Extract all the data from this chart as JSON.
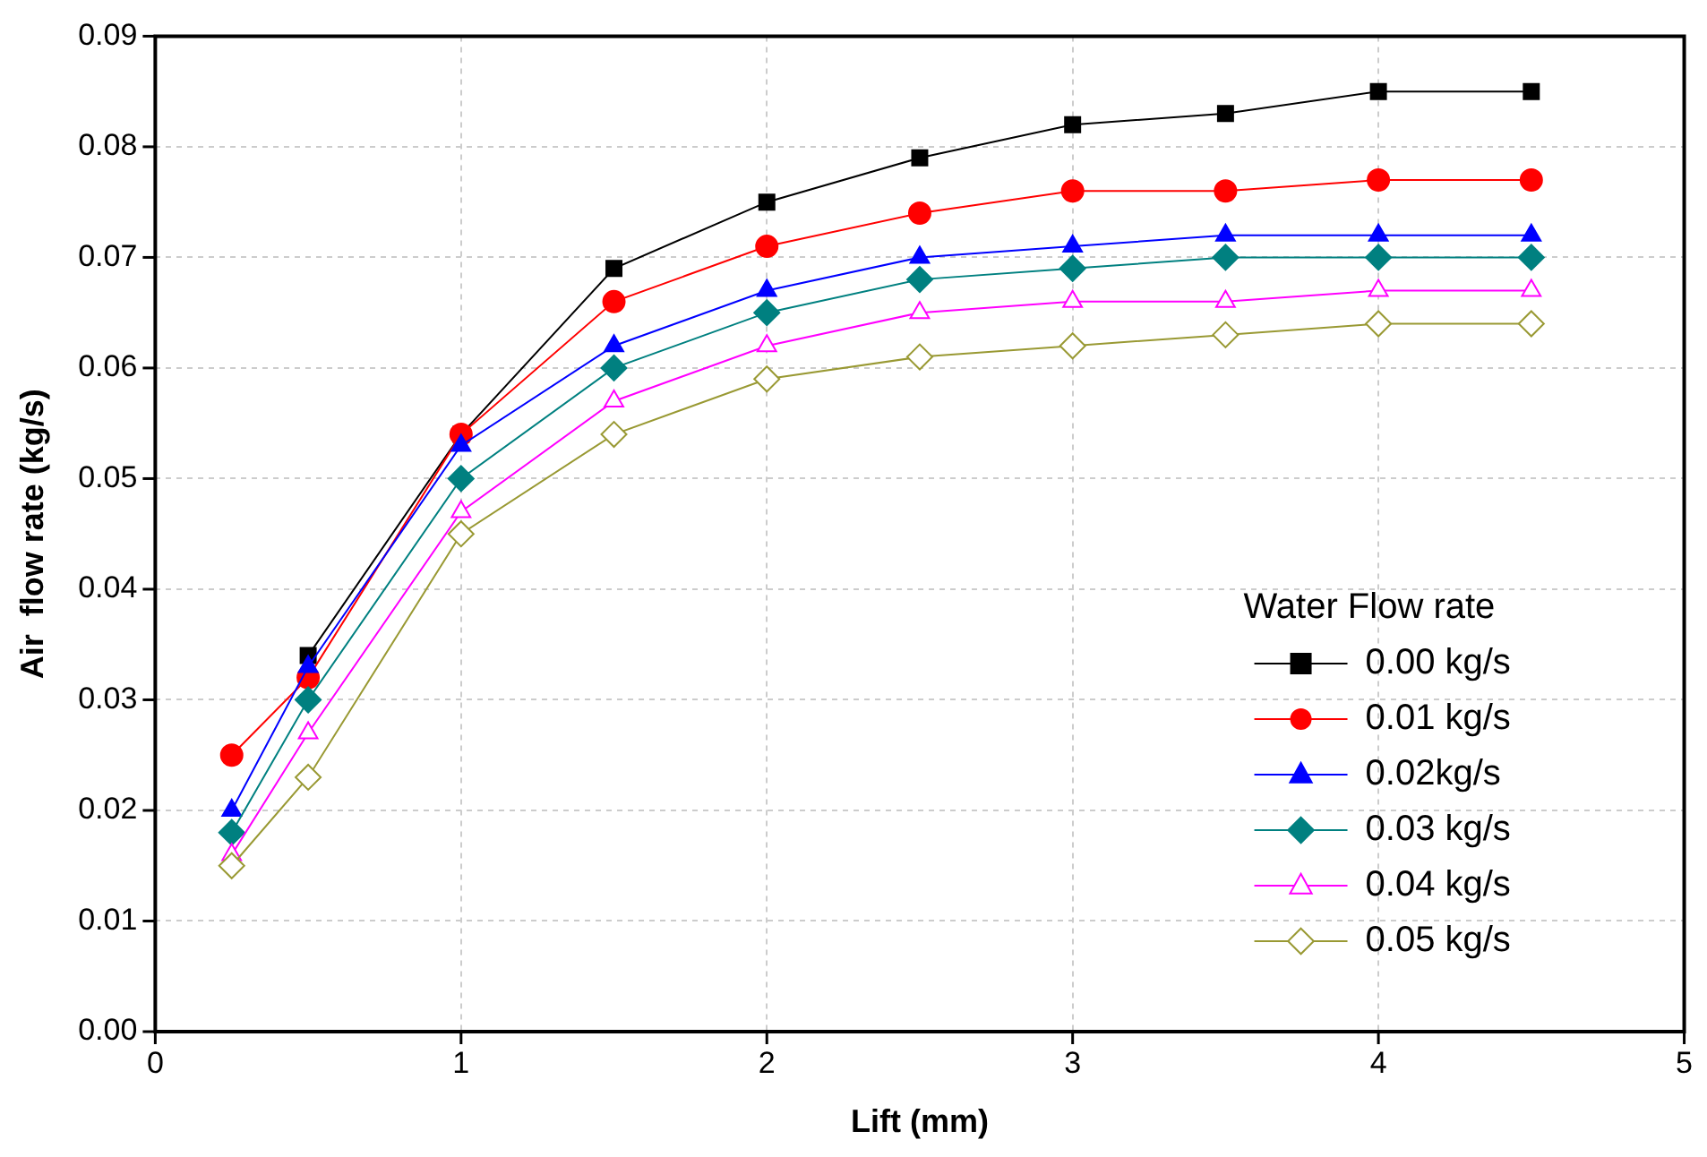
{
  "chart_data": {
    "type": "line",
    "xlabel": "Lift (mm)",
    "ylabel": "Air  flow rate (kg/s)",
    "legend_title": "Water Flow rate",
    "x": [
      0.25,
      0.5,
      1,
      1.5,
      2,
      2.5,
      3,
      3.5,
      4,
      4.5
    ],
    "series": [
      {
        "name": "0.00 kg/s",
        "color": "#000000",
        "marker": "square",
        "values": [
          null,
          0.034,
          0.054,
          0.069,
          0.075,
          0.079,
          0.082,
          0.083,
          0.085,
          0.085
        ]
      },
      {
        "name": "0.01 kg/s",
        "color": "#ff0000",
        "marker": "circle",
        "values": [
          0.025,
          0.032,
          0.054,
          0.066,
          0.071,
          0.074,
          0.076,
          0.076,
          0.077,
          0.077
        ]
      },
      {
        "name": "0.02kg/s",
        "color": "#0000ff",
        "marker": "triangle",
        "values": [
          0.02,
          0.033,
          0.053,
          0.062,
          0.067,
          0.07,
          0.071,
          0.072,
          0.072,
          0.072
        ]
      },
      {
        "name": "0.03 kg/s",
        "color": "#008080",
        "marker": "diamond",
        "values": [
          0.018,
          0.03,
          0.05,
          0.06,
          0.065,
          0.068,
          0.069,
          0.07,
          0.07,
          0.07
        ]
      },
      {
        "name": "0.04 kg/s",
        "color": "#ff00ff",
        "marker": "triangle-open",
        "values": [
          0.016,
          0.027,
          0.047,
          0.057,
          0.062,
          0.065,
          0.066,
          0.066,
          0.067,
          0.067
        ]
      },
      {
        "name": "0.05 kg/s",
        "color": "#999933",
        "marker": "diamond-open",
        "values": [
          0.015,
          0.023,
          0.045,
          0.054,
          0.059,
          0.061,
          0.062,
          0.063,
          0.064,
          0.064
        ]
      }
    ],
    "xlim": [
      0,
      5
    ],
    "xticks": [
      0,
      1,
      2,
      3,
      4,
      5
    ],
    "ylim": [
      0,
      0.09
    ],
    "yticks": [
      {
        "value": 0,
        "label": "0.00"
      },
      {
        "value": 0.01,
        "label": "0.01"
      },
      {
        "value": 0.02,
        "label": "0.02"
      },
      {
        "value": 0.03,
        "label": "0.03"
      },
      {
        "value": 0.04,
        "label": "0.04"
      },
      {
        "value": 0.05,
        "label": "0.05"
      },
      {
        "value": 0.06,
        "label": "0.06"
      },
      {
        "value": 0.07,
        "label": "0.07"
      },
      {
        "value": 0.08,
        "label": "0.08"
      },
      {
        "value": 0.09,
        "label": "0.09"
      }
    ],
    "grid": true,
    "legend": "bottom right",
    "line_style": "solid"
  }
}
